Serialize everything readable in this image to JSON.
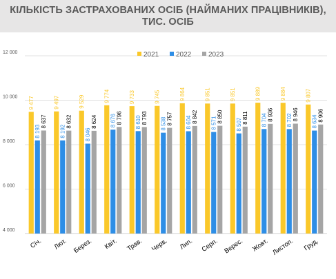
{
  "title": "КІЛЬКІСТЬ ЗАСТРАХОВАНИХ ОСІБ (НАЙМАНИХ ПРАЦІВНИКІВ),\nТИС. ОСІБ",
  "colors": {
    "2021": "#fac82a",
    "2022": "#2e8ee6",
    "2023": "#a5a5a5",
    "grid": "#d9d9d9",
    "axis": "#bfbfbf"
  },
  "chart_data": {
    "type": "bar",
    "title": "КІЛЬКІСТЬ ЗАСТРАХОВАНИХ ОСІБ (НАЙМАНИХ ПРАЦІВНИКІВ), ТИС. ОСІБ",
    "categories": [
      "Січ.",
      "Лют.",
      "Берез.",
      "Квіт.",
      "Трав.",
      "Черв.",
      "Лип.",
      "Серп.",
      "Верес.",
      "Жовт.",
      "Листоп.",
      "Груд."
    ],
    "series": [
      {
        "name": "2021",
        "values": [
          9477,
          9497,
          9529,
          9774,
          9733,
          9745,
          9864,
          9851,
          9851,
          9889,
          9884,
          9807
        ],
        "labels": [
          "9 477",
          "9 497",
          "9 529",
          "9 774",
          "9 733",
          "9 745",
          "9 864",
          "9 851",
          "9 851",
          "9 889",
          "9 884",
          "9 807"
        ]
      },
      {
        "name": "2022",
        "values": [
          8193,
          8192,
          8046,
          8676,
          8610,
          8538,
          8604,
          8571,
          8507,
          8704,
          8702,
          8634
        ],
        "labels": [
          "8 193",
          "8 192",
          "8 046",
          "8 676",
          "8 610",
          "8 538",
          "8 604",
          "8 571",
          "8 507",
          "8 704",
          "8 702",
          "8 634"
        ]
      },
      {
        "name": "2023",
        "values": [
          8637,
          8632,
          8624,
          8796,
          8793,
          8757,
          8842,
          8850,
          8811,
          8936,
          8946,
          8906
        ],
        "labels": [
          "8 637",
          "8 632",
          "8 624",
          "8 796",
          "8 793",
          "8 757",
          "8 842",
          "8 850",
          "8 811",
          "8 936",
          "8 946",
          "8 906"
        ]
      }
    ],
    "ylim": [
      4000,
      12000
    ],
    "yticks": [
      4000,
      6000,
      8000,
      10000,
      12000
    ],
    "ytick_labels": [
      "4 000",
      "6 000",
      "8 000",
      "10 000",
      "12 000"
    ],
    "xlabel": "",
    "ylabel": "",
    "grid": true,
    "legend": "top-center"
  }
}
